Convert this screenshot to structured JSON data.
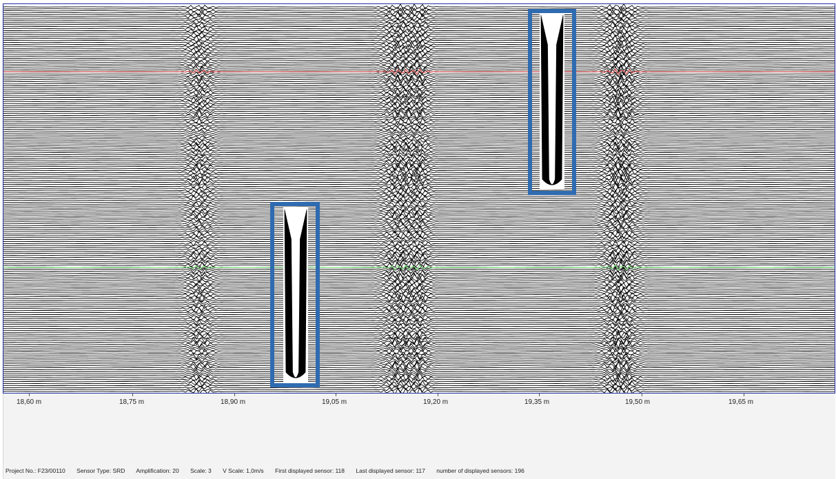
{
  "axis": {
    "ticks": [
      {
        "label": "18,60 m"
      },
      {
        "label": "18,75 m"
      },
      {
        "label": "18,90 m"
      },
      {
        "label": "19,05 m"
      },
      {
        "label": "19,20 m"
      },
      {
        "label": "19,35 m"
      },
      {
        "label": "19,50 m"
      },
      {
        "label": "19,65 m"
      }
    ]
  },
  "colors": {
    "trace": "#000000",
    "marker_red": "#e25a5a",
    "marker_green": "#7fdc7f",
    "highlight_box": "#2f6bb0",
    "frame": "#1f2f9e",
    "axis_background": "#f3f3f3"
  },
  "status": {
    "project": "Project No.: F23/00110",
    "sensor_type": "Sensor Type: SRD",
    "amplification": "Amplification: 20",
    "scale": "Scale: 3",
    "v_scale": "V Scale: 1,0m/s",
    "first_sensor": "First displayed sensor: 118",
    "last_sensor": "Last displayed sensor: 117",
    "num_sensors": "number of displayed sensors: 196"
  }
}
